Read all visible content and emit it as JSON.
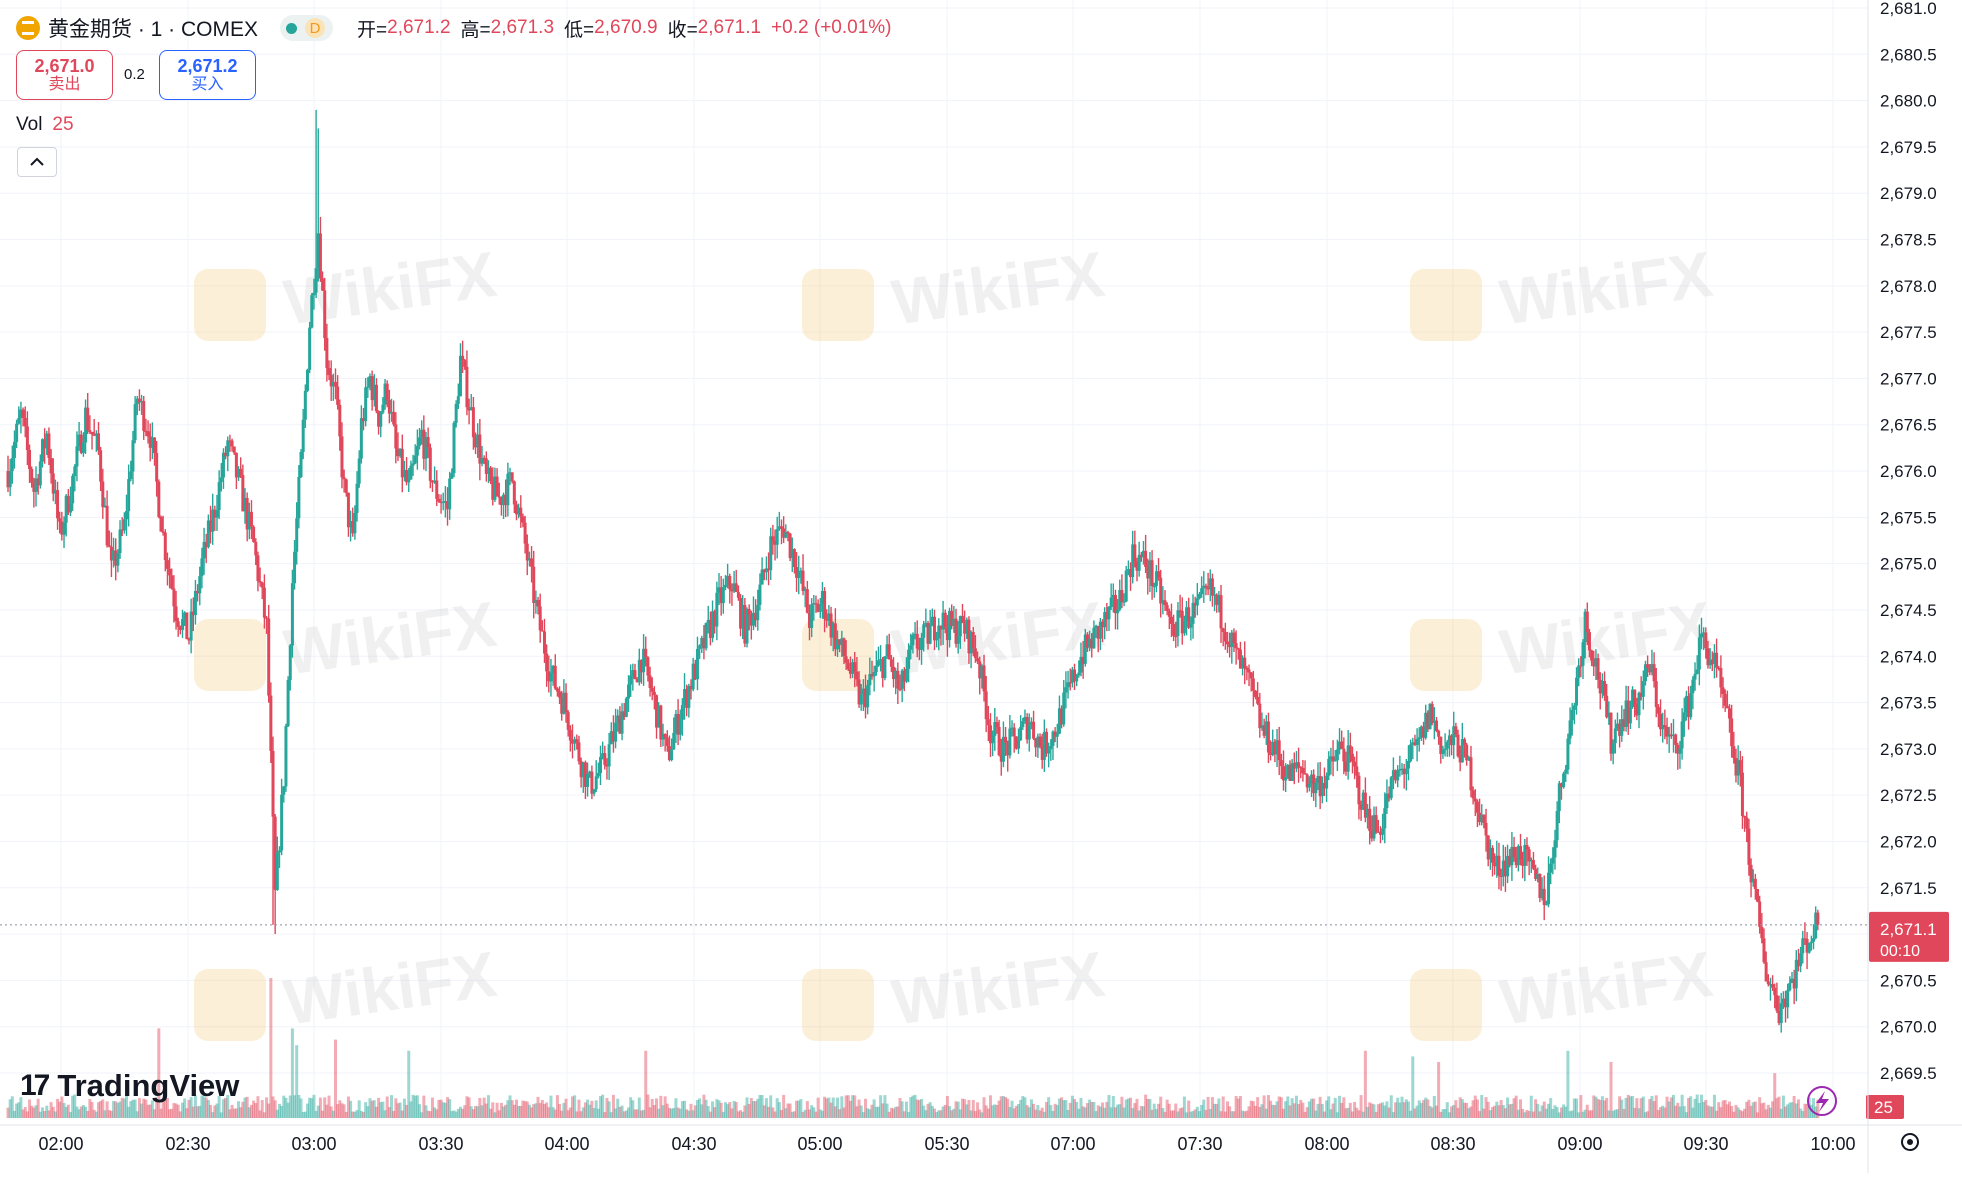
{
  "header": {
    "symbol_title": "黄金期货 · 1 · COMEX",
    "status_letter": "D",
    "ohlc": [
      {
        "k": "开=",
        "v": "2,671.2"
      },
      {
        "k": "高=",
        "v": "2,671.3"
      },
      {
        "k": "低=",
        "v": "2,670.9"
      },
      {
        "k": "收=",
        "v": "2,671.1"
      },
      {
        "k": "",
        "v": "+0.2 (+0.01%)"
      }
    ]
  },
  "trade": {
    "sell_price": "2,671.0",
    "sell_label": "卖出",
    "spread": "0.2",
    "buy_price": "2,671.2",
    "buy_label": "买入"
  },
  "volume_legend": {
    "label": "Vol",
    "value": "25"
  },
  "current_price": {
    "value": "2,671.1",
    "countdown": "00:10"
  },
  "volume_tag": "25",
  "watermark_text": "WikiFX",
  "brand": "TradingView",
  "icons": [
    "gold-symbol-icon",
    "chevron-up-icon",
    "lightning-icon",
    "settings-gear-icon",
    "tradingview-logo-icon"
  ],
  "colors": {
    "up": "#26a69a",
    "down": "#e0475a",
    "accent": "#2962ff",
    "grid": "#f0f3fa",
    "watermark": "#f3c76f"
  },
  "chart_data": {
    "type": "candlestick",
    "interval_minutes": 1,
    "y_ticks": [
      "2,681.0",
      "2,680.5",
      "2,680.0",
      "2,679.5",
      "2,679.0",
      "2,678.5",
      "2,678.0",
      "2,677.5",
      "2,677.0",
      "2,676.5",
      "2,676.0",
      "2,675.5",
      "2,675.0",
      "2,674.5",
      "2,674.0",
      "2,673.5",
      "2,673.0",
      "2,672.5",
      "2,672.0",
      "2,671.5",
      "2,671.0",
      "2,670.5",
      "2,670.0",
      "2,669.5"
    ],
    "x_ticks": [
      "02:00",
      "02:30",
      "03:00",
      "03:30",
      "04:00",
      "04:30",
      "05:00",
      "05:30",
      "07:00",
      "07:30",
      "08:00",
      "08:30",
      "09:00",
      "09:30",
      "10:00"
    ],
    "ylim": [
      2669.5,
      2681.0
    ],
    "last_price": 2671.1,
    "close_path": [
      [
        0,
        2676.0
      ],
      [
        6,
        2676.6
      ],
      [
        12,
        2675.8
      ],
      [
        18,
        2676.4
      ],
      [
        24,
        2675.3
      ],
      [
        30,
        2675.9
      ],
      [
        36,
        2676.6
      ],
      [
        42,
        2676.2
      ],
      [
        48,
        2674.9
      ],
      [
        54,
        2675.4
      ],
      [
        60,
        2676.8
      ],
      [
        66,
        2676.4
      ],
      [
        72,
        2675.3
      ],
      [
        78,
        2674.5
      ],
      [
        84,
        2674.2
      ],
      [
        90,
        2675.0
      ],
      [
        96,
        2675.6
      ],
      [
        102,
        2676.3
      ],
      [
        108,
        2675.8
      ],
      [
        114,
        2675.2
      ],
      [
        120,
        2674.3
      ],
      [
        124,
        2671.4
      ],
      [
        128,
        2672.7
      ],
      [
        132,
        2674.8
      ],
      [
        136,
        2676.1
      ],
      [
        140,
        2677.6
      ],
      [
        144,
        2678.6
      ],
      [
        148,
        2677.2
      ],
      [
        152,
        2676.8
      ],
      [
        156,
        2675.8
      ],
      [
        160,
        2675.2
      ],
      [
        164,
        2676.5
      ],
      [
        168,
        2677.0
      ],
      [
        172,
        2676.6
      ],
      [
        176,
        2676.9
      ],
      [
        180,
        2676.2
      ],
      [
        186,
        2675.8
      ],
      [
        192,
        2676.4
      ],
      [
        198,
        2675.8
      ],
      [
        204,
        2675.6
      ],
      [
        210,
        2677.2
      ],
      [
        216,
        2676.5
      ],
      [
        222,
        2675.9
      ],
      [
        228,
        2675.7
      ],
      [
        234,
        2675.9
      ],
      [
        240,
        2675.2
      ],
      [
        246,
        2674.4
      ],
      [
        252,
        2673.8
      ],
      [
        258,
        2673.5
      ],
      [
        264,
        2673.0
      ],
      [
        270,
        2672.6
      ],
      [
        276,
        2672.8
      ],
      [
        282,
        2673.2
      ],
      [
        288,
        2673.6
      ],
      [
        294,
        2674.0
      ],
      [
        300,
        2673.5
      ],
      [
        306,
        2672.9
      ],
      [
        312,
        2673.4
      ],
      [
        318,
        2673.8
      ],
      [
        324,
        2674.2
      ],
      [
        330,
        2674.6
      ],
      [
        336,
        2674.8
      ],
      [
        342,
        2674.3
      ],
      [
        348,
        2674.6
      ],
      [
        354,
        2675.2
      ],
      [
        360,
        2675.4
      ],
      [
        366,
        2675.0
      ],
      [
        372,
        2674.4
      ],
      [
        378,
        2674.6
      ],
      [
        384,
        2674.2
      ],
      [
        390,
        2673.9
      ],
      [
        396,
        2673.5
      ],
      [
        402,
        2673.8
      ],
      [
        408,
        2674.0
      ],
      [
        414,
        2673.6
      ],
      [
        420,
        2674.1
      ],
      [
        426,
        2674.2
      ],
      [
        432,
        2674.4
      ],
      [
        438,
        2674.3
      ],
      [
        444,
        2674.3
      ],
      [
        450,
        2674.0
      ],
      [
        456,
        2673.2
      ],
      [
        462,
        2673.0
      ],
      [
        468,
        2673.1
      ],
      [
        474,
        2673.3
      ],
      [
        480,
        2673.0
      ],
      [
        486,
        2673.2
      ],
      [
        492,
        2673.6
      ],
      [
        498,
        2674.0
      ],
      [
        504,
        2674.2
      ],
      [
        510,
        2674.4
      ],
      [
        516,
        2674.6
      ],
      [
        522,
        2675.1
      ],
      [
        528,
        2675.0
      ],
      [
        534,
        2674.7
      ],
      [
        540,
        2674.3
      ],
      [
        546,
        2674.4
      ],
      [
        552,
        2674.5
      ],
      [
        558,
        2674.7
      ],
      [
        564,
        2674.4
      ],
      [
        570,
        2674.0
      ],
      [
        576,
        2673.7
      ],
      [
        582,
        2673.2
      ],
      [
        588,
        2673.0
      ],
      [
        594,
        2672.7
      ],
      [
        600,
        2672.8
      ],
      [
        606,
        2672.6
      ],
      [
        612,
        2672.7
      ],
      [
        618,
        2673.0
      ],
      [
        624,
        2672.8
      ],
      [
        630,
        2672.3
      ],
      [
        636,
        2672.1
      ],
      [
        642,
        2672.6
      ],
      [
        648,
        2672.8
      ],
      [
        654,
        2673.0
      ],
      [
        660,
        2673.4
      ],
      [
        666,
        2673.0
      ],
      [
        672,
        2673.1
      ],
      [
        678,
        2672.8
      ],
      [
        684,
        2672.2
      ],
      [
        690,
        2671.7
      ],
      [
        696,
        2671.8
      ],
      [
        702,
        2671.9
      ],
      [
        708,
        2671.6
      ],
      [
        714,
        2671.4
      ],
      [
        720,
        2672.5
      ],
      [
        726,
        2673.4
      ],
      [
        732,
        2674.4
      ],
      [
        738,
        2673.8
      ],
      [
        744,
        2673.1
      ],
      [
        750,
        2673.4
      ],
      [
        756,
        2673.5
      ],
      [
        762,
        2673.9
      ],
      [
        768,
        2673.2
      ],
      [
        774,
        2673.0
      ],
      [
        780,
        2673.5
      ],
      [
        786,
        2674.2
      ],
      [
        792,
        2673.9
      ],
      [
        798,
        2673.3
      ],
      [
        804,
        2672.6
      ],
      [
        810,
        2671.5
      ],
      [
        816,
        2670.6
      ],
      [
        822,
        2670.2
      ],
      [
        828,
        2670.5
      ],
      [
        834,
        2670.9
      ],
      [
        840,
        2671.1
      ]
    ],
    "volume": {
      "scale_max": 25,
      "notes": "volume bars at bottom, colored by candle direction",
      "spikes": [
        [
          122,
          25
        ],
        [
          134,
          13
        ],
        [
          152,
          14
        ],
        [
          186,
          12
        ],
        [
          132,
          16
        ],
        [
          296,
          12
        ],
        [
          630,
          12
        ],
        [
          652,
          11
        ],
        [
          664,
          10
        ],
        [
          820,
          8
        ],
        [
          724,
          12
        ],
        [
          744,
          10
        ],
        [
          70,
          16
        ]
      ]
    }
  }
}
